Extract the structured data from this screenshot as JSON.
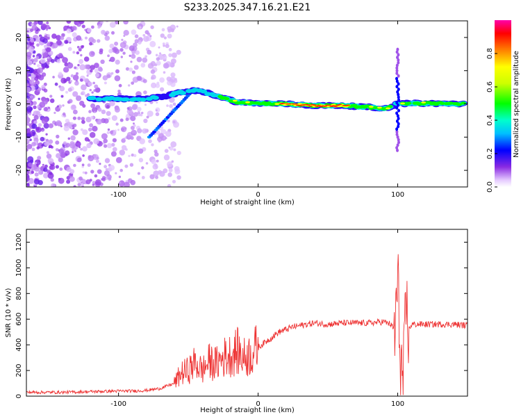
{
  "figure": {
    "title": "S233.2025.347.16.21.E21"
  },
  "chart_data": [
    {
      "type": "heatmap",
      "title": "S233.2025.347.16.21.E21",
      "xlabel": "Height of straight line (km)",
      "ylabel": "Frequency (Hz)",
      "xlim": [
        -166,
        150
      ],
      "ylim": [
        -25,
        25
      ],
      "xticks": [
        -100,
        0,
        100
      ],
      "xtick_labels": [
        "-100",
        "0",
        "100"
      ],
      "yticks": [
        -20,
        -10,
        0,
        10,
        20
      ],
      "ytick_labels": [
        "-20",
        "-10",
        "0",
        "10",
        "20"
      ],
      "colorbar": {
        "label": "Normalized spectral amplitude",
        "range": [
          0,
          1
        ],
        "ticks": [
          0.0,
          0.2,
          0.4,
          0.6,
          0.8
        ],
        "tick_labels": [
          "0.0",
          "0.2",
          "0.4",
          "0.6",
          "0.8"
        ]
      },
      "ridge": {
        "description_points_km_hz": [
          [
            -120,
            1.5
          ],
          [
            -100,
            1.5
          ],
          [
            -80,
            1.5
          ],
          [
            -65,
            2.5
          ],
          [
            -55,
            3.5
          ],
          [
            -45,
            4.0
          ],
          [
            -38,
            3.5
          ],
          [
            -30,
            2.5
          ],
          [
            -22,
            1.5
          ],
          [
            -15,
            0.5
          ],
          [
            0,
            0.2
          ],
          [
            20,
            0
          ],
          [
            40,
            -0.5
          ],
          [
            60,
            -0.5
          ],
          [
            80,
            -1
          ],
          [
            90,
            -1.5
          ],
          [
            100,
            0
          ],
          [
            110,
            0.2
          ],
          [
            150,
            0
          ]
        ],
        "peak_amplitude": 0.95
      },
      "vertical_streak_km": 100
    },
    {
      "type": "line",
      "xlabel": "Height of straight line (km)",
      "ylabel": "SNR (10 * v/v)",
      "xlim": [
        -166,
        150
      ],
      "ylim": [
        0,
        1300
      ],
      "xticks": [
        -100,
        0,
        100
      ],
      "xtick_labels": [
        "-100",
        "0",
        "100"
      ],
      "yticks": [
        0,
        200,
        400,
        600,
        800,
        1000,
        1200
      ],
      "ytick_labels": [
        "0",
        "200",
        "400",
        "600",
        "800",
        "1000",
        "1200"
      ],
      "color": "#ee3333",
      "series": [
        {
          "name": "SNR",
          "x": [
            -166,
            -140,
            -120,
            -100,
            -90,
            -80,
            -70,
            -60,
            -55,
            -50,
            -45,
            -40,
            -35,
            -30,
            -25,
            -20,
            -15,
            -10,
            -5,
            0,
            5,
            10,
            15,
            20,
            25,
            30,
            35,
            40,
            50,
            60,
            70,
            80,
            90,
            95,
            98,
            100,
            102,
            104,
            106,
            108,
            110,
            120,
            130,
            140,
            150
          ],
          "y": [
            30,
            30,
            35,
            40,
            40,
            45,
            60,
            100,
            180,
            200,
            260,
            200,
            270,
            250,
            300,
            320,
            350,
            300,
            330,
            380,
            420,
            460,
            500,
            520,
            540,
            550,
            560,
            570,
            560,
            570,
            570,
            570,
            580,
            560,
            500,
            900,
            300,
            100,
            700,
            520,
            560,
            560,
            560,
            560,
            550
          ]
        }
      ]
    }
  ]
}
